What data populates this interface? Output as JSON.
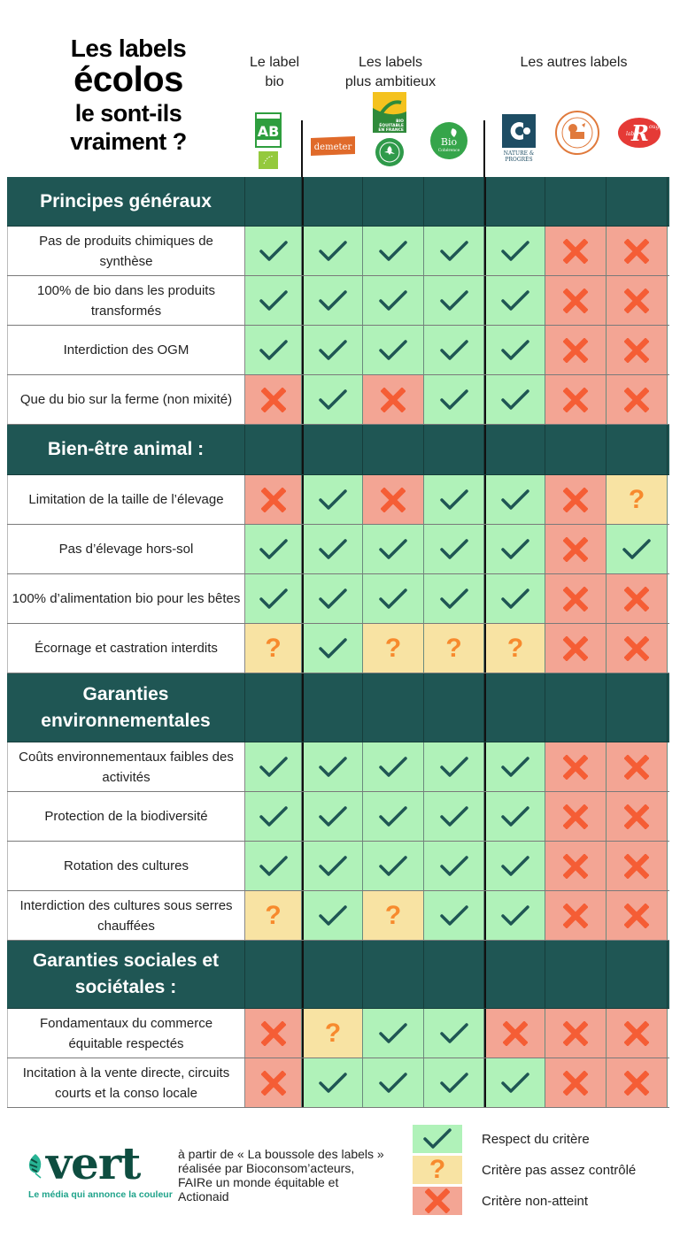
{
  "title": {
    "line1": "Les labels",
    "line2": "écolos",
    "line3": "le sont-ils",
    "line4": "vraiment ?"
  },
  "groups": [
    {
      "label_line1": "Le label",
      "label_line2": "bio"
    },
    {
      "label_line1": "Les labels",
      "label_line2": "plus ambitieux"
    },
    {
      "label_line1": "Les autres labels",
      "label_line2": ""
    }
  ],
  "labels": [
    {
      "name": "AB Agriculture Biologique + Eurofeuille",
      "icon": "ab-eu-organic-logo",
      "group": "Le label bio"
    },
    {
      "name": "Demeter",
      "icon": "demeter-logo",
      "group": "Les labels plus ambitieux"
    },
    {
      "name": "Bio Équitable en France / Bio Partenaire",
      "icon": "bio-equitable-logo",
      "group": "Les labels plus ambitieux"
    },
    {
      "name": "Bio Cohérence",
      "icon": "bio-coherence-logo",
      "group": "Les labels plus ambitieux"
    },
    {
      "name": "Nature & Progrès",
      "icon": "nature-progres-logo",
      "group": "Les autres labels"
    },
    {
      "name": "Haute Valeur Environnementale",
      "icon": "hve-logo",
      "group": "Les autres labels"
    },
    {
      "name": "Label Rouge",
      "icon": "label-rouge-logo",
      "group": "Les autres labels"
    }
  ],
  "logo_text": {
    "ab": "AB",
    "demeter": "demeter",
    "bio_equitable": "BIO ÉQUITABLE EN FRANCE",
    "bio_coherence_1": "Bio",
    "bio_coherence_2": "Cohérence",
    "nature_progres_1": "NATURE &",
    "nature_progres_2": "PROGRÈS",
    "label_rouge": "Label Rouge"
  },
  "sections": [
    {
      "title": "Principes généraux",
      "rows": [
        {
          "criterion": "Pas de produits chimiques de synthèse",
          "values": [
            "yes",
            "yes",
            "yes",
            "yes",
            "yes",
            "no",
            "no"
          ]
        },
        {
          "criterion": "100% de bio dans les produits transformés",
          "values": [
            "yes",
            "yes",
            "yes",
            "yes",
            "yes",
            "no",
            "no"
          ]
        },
        {
          "criterion": "Interdiction des OGM",
          "values": [
            "yes",
            "yes",
            "yes",
            "yes",
            "yes",
            "no",
            "no"
          ]
        },
        {
          "criterion": "Que du bio sur la ferme (non mixité)",
          "values": [
            "no",
            "yes",
            "no",
            "yes",
            "yes",
            "no",
            "no"
          ]
        }
      ]
    },
    {
      "title": "Bien-être animal :",
      "rows": [
        {
          "criterion": "Limitation de la taille de l’élevage",
          "values": [
            "no",
            "yes",
            "no",
            "yes",
            "yes",
            "no",
            "maybe"
          ]
        },
        {
          "criterion": "Pas d’élevage hors-sol",
          "values": [
            "yes",
            "yes",
            "yes",
            "yes",
            "yes",
            "no",
            "yes"
          ]
        },
        {
          "criterion": "100% d’alimentation bio pour les bêtes",
          "values": [
            "yes",
            "yes",
            "yes",
            "yes",
            "yes",
            "no",
            "no"
          ]
        },
        {
          "criterion": "Écornage et castration interdits",
          "values": [
            "maybe",
            "yes",
            "maybe",
            "maybe",
            "maybe",
            "no",
            "no"
          ]
        }
      ]
    },
    {
      "title": "Garanties environnementales",
      "rows": [
        {
          "criterion": "Coûts environnementaux faibles des activités",
          "values": [
            "yes",
            "yes",
            "yes",
            "yes",
            "yes",
            "no",
            "no"
          ]
        },
        {
          "criterion": "Protection de la biodiversité",
          "values": [
            "yes",
            "yes",
            "yes",
            "yes",
            "yes",
            "no",
            "no"
          ]
        },
        {
          "criterion": "Rotation des cultures",
          "values": [
            "yes",
            "yes",
            "yes",
            "yes",
            "yes",
            "no",
            "no"
          ]
        },
        {
          "criterion": "Interdiction des cultures sous serres chauffées",
          "values": [
            "maybe",
            "yes",
            "maybe",
            "yes",
            "yes",
            "no",
            "no"
          ]
        }
      ]
    },
    {
      "title": "Garanties sociales et sociétales :",
      "rows": [
        {
          "criterion": "Fondamentaux du commerce équitable respectés",
          "values": [
            "no",
            "maybe",
            "yes",
            "yes",
            "no",
            "no",
            "no"
          ]
        },
        {
          "criterion": "Incitation à la vente directe, circuits courts et la conso locale",
          "values": [
            "no",
            "yes",
            "yes",
            "yes",
            "yes",
            "no",
            "no"
          ]
        }
      ]
    }
  ],
  "legend": [
    {
      "key": "yes",
      "label": "Respect du critère",
      "icon": "check-icon"
    },
    {
      "key": "maybe",
      "label": "Critère pas assez contrôlé",
      "icon": "question-icon"
    },
    {
      "key": "no",
      "label": "Critère non-atteint",
      "icon": "cross-icon"
    }
  ],
  "footer": {
    "brand": "vert",
    "tagline": "Le média qui annonce la couleur",
    "credit": "à partir  de « La boussole des labels » réalisée par Bioconsom’acteurs, FAIRe un monde équitable et Actionaid"
  },
  "colors": {
    "section_bg": "#1f5654",
    "yes_bg": "#b0f2b9",
    "no_bg": "#f3a594",
    "maybe_bg": "#f8e3a3",
    "check": "#1f5654",
    "cross": "#f55d35",
    "question": "#f78a2d",
    "title_underline": "#f25c3a",
    "brand_green": "#0e4d40",
    "brand_teal": "#1fa38a"
  },
  "chart_data": {
    "type": "table",
    "title": "Les labels écolos le sont-ils vraiment ?",
    "columns": [
      "AB (bio)",
      "Demeter",
      "Bio Équitable en France",
      "Bio Cohérence",
      "Nature & Progrès",
      "HVE",
      "Label Rouge"
    ],
    "column_groups": [
      {
        "name": "Le label bio",
        "columns": [
          "AB (bio)"
        ]
      },
      {
        "name": "Les labels plus ambitieux",
        "columns": [
          "Demeter",
          "Bio Équitable en France",
          "Bio Cohérence"
        ]
      },
      {
        "name": "Les autres labels",
        "columns": [
          "Nature & Progrès",
          "HVE",
          "Label Rouge"
        ]
      }
    ],
    "value_legend": {
      "yes": "Respect du critère",
      "maybe": "Critère pas assez contrôlé",
      "no": "Critère non-atteint"
    },
    "rows": [
      {
        "section": "Principes généraux",
        "criterion": "Pas de produits chimiques de synthèse",
        "values": [
          "yes",
          "yes",
          "yes",
          "yes",
          "yes",
          "no",
          "no"
        ]
      },
      {
        "section": "Principes généraux",
        "criterion": "100% de bio dans les produits transformés",
        "values": [
          "yes",
          "yes",
          "yes",
          "yes",
          "yes",
          "no",
          "no"
        ]
      },
      {
        "section": "Principes généraux",
        "criterion": "Interdiction des OGM",
        "values": [
          "yes",
          "yes",
          "yes",
          "yes",
          "yes",
          "no",
          "no"
        ]
      },
      {
        "section": "Principes généraux",
        "criterion": "Que du bio sur la ferme (non mixité)",
        "values": [
          "no",
          "yes",
          "no",
          "yes",
          "yes",
          "no",
          "no"
        ]
      },
      {
        "section": "Bien-être animal",
        "criterion": "Limitation de la taille de l’élevage",
        "values": [
          "no",
          "yes",
          "no",
          "yes",
          "yes",
          "no",
          "maybe"
        ]
      },
      {
        "section": "Bien-être animal",
        "criterion": "Pas d’élevage hors-sol",
        "values": [
          "yes",
          "yes",
          "yes",
          "yes",
          "yes",
          "no",
          "yes"
        ]
      },
      {
        "section": "Bien-être animal",
        "criterion": "100% d’alimentation bio pour les bêtes",
        "values": [
          "yes",
          "yes",
          "yes",
          "yes",
          "yes",
          "no",
          "no"
        ]
      },
      {
        "section": "Bien-être animal",
        "criterion": "Écornage et castration interdits",
        "values": [
          "maybe",
          "yes",
          "maybe",
          "maybe",
          "maybe",
          "no",
          "no"
        ]
      },
      {
        "section": "Garanties environnementales",
        "criterion": "Coûts environnementaux faibles des activités",
        "values": [
          "yes",
          "yes",
          "yes",
          "yes",
          "yes",
          "no",
          "no"
        ]
      },
      {
        "section": "Garanties environnementales",
        "criterion": "Protection de la biodiversité",
        "values": [
          "yes",
          "yes",
          "yes",
          "yes",
          "yes",
          "no",
          "no"
        ]
      },
      {
        "section": "Garanties environnementales",
        "criterion": "Rotation des cultures",
        "values": [
          "yes",
          "yes",
          "yes",
          "yes",
          "yes",
          "no",
          "no"
        ]
      },
      {
        "section": "Garanties environnementales",
        "criterion": "Interdiction des cultures sous serres chauffées",
        "values": [
          "maybe",
          "yes",
          "maybe",
          "yes",
          "yes",
          "no",
          "no"
        ]
      },
      {
        "section": "Garanties sociales et sociétales",
        "criterion": "Fondamentaux du commerce équitable respectés",
        "values": [
          "no",
          "maybe",
          "yes",
          "yes",
          "no",
          "no",
          "no"
        ]
      },
      {
        "section": "Garanties sociales et sociétales",
        "criterion": "Incitation à la vente directe, circuits courts et la conso locale",
        "values": [
          "no",
          "yes",
          "yes",
          "yes",
          "yes",
          "no",
          "no"
        ]
      }
    ]
  }
}
